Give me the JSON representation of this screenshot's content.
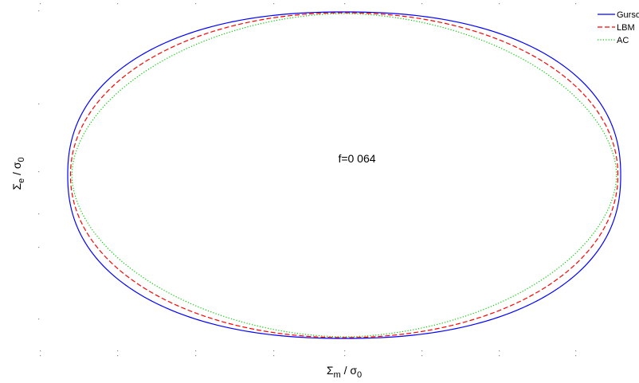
{
  "chart_data": {
    "type": "line",
    "title": "",
    "annotation": "f=0 064",
    "xlabel": {
      "main": "Σ",
      "sub": "m",
      "sep": " / ",
      "sigma": "σ",
      "sigma_sub": "0"
    },
    "ylabel": {
      "main": "Σ",
      "sub": "e",
      "sep": " / ",
      "sigma": "σ",
      "sigma_sub": "0"
    },
    "xlim": [
      -1,
      1
    ],
    "ylim": [
      -1.05,
      1.05
    ],
    "grid": false,
    "legend_position": "top-right",
    "series": [
      {
        "name": "Gurson",
        "color": "#0000ff",
        "style": "solid",
        "shape_exponent": 2.25,
        "rx": 1.0,
        "ry": 1.0
      },
      {
        "name": "LBM",
        "color": "#ff0000",
        "style": "dashed",
        "shape_exponent": 2.05,
        "rx": 0.99,
        "ry": 0.995
      },
      {
        "name": "AC",
        "color": "#00cc00",
        "style": "dotted",
        "shape_exponent": 1.85,
        "rx": 0.985,
        "ry": 0.99
      }
    ]
  }
}
